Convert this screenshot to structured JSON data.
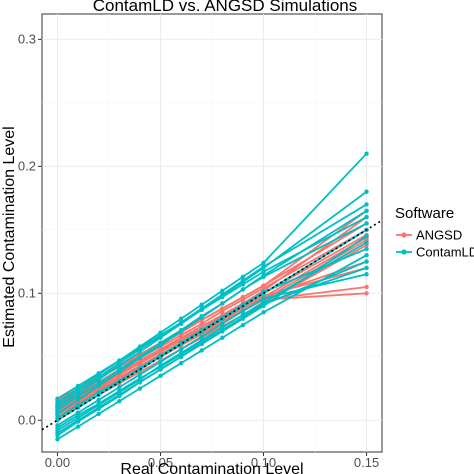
{
  "chart_data": {
    "type": "line",
    "title": "ContamLD vs. ANGSD Simulations",
    "xlabel": "Real Contamination Level",
    "ylabel": "Estimated Contamination Level",
    "x": [
      0.0,
      0.01,
      0.02,
      0.03,
      0.04,
      0.05,
      0.06,
      0.07,
      0.08,
      0.09,
      0.1,
      0.15
    ],
    "xticks": [
      0.0,
      0.05,
      0.1,
      0.15
    ],
    "xtick_labels": [
      "0.00",
      "0.05",
      "0.10",
      "0.15"
    ],
    "yticks": [
      0.0,
      0.1,
      0.2,
      0.3
    ],
    "ytick_labels": [
      "0.0",
      "0.1",
      "0.2",
      "0.3"
    ],
    "xlim": [
      -0.0075,
      0.1575
    ],
    "ylim": [
      -0.025,
      0.32
    ],
    "reference_line": {
      "slope": 1,
      "intercept": 0,
      "style": "dotted",
      "color": "#000000"
    },
    "grid": true,
    "legend": {
      "title": "Software",
      "position": "right",
      "entries": [
        {
          "name": "ANGSD",
          "color": "#F8766D"
        },
        {
          "name": "ContamLD",
          "color": "#00BFC4"
        }
      ]
    },
    "series": [
      {
        "name": "ANGSD",
        "color": "#F8766D",
        "lines": [
          [
            0.004,
            0.013,
            0.022,
            0.031,
            0.04,
            0.05,
            0.059,
            0.068,
            0.077,
            0.086,
            0.095,
            0.142
          ],
          [
            0.008,
            0.017,
            0.026,
            0.036,
            0.045,
            0.054,
            0.063,
            0.072,
            0.082,
            0.091,
            0.1,
            0.146
          ],
          [
            0.012,
            0.021,
            0.03,
            0.04,
            0.049,
            0.058,
            0.067,
            0.076,
            0.086,
            0.095,
            0.104,
            0.15
          ],
          [
            0.006,
            0.015,
            0.024,
            0.033,
            0.042,
            0.052,
            0.061,
            0.07,
            0.079,
            0.088,
            0.097,
            0.144
          ],
          [
            0.01,
            0.019,
            0.028,
            0.037,
            0.047,
            0.056,
            0.065,
            0.074,
            0.083,
            0.092,
            0.102,
            0.16
          ],
          [
            0.014,
            0.023,
            0.033,
            0.042,
            0.051,
            0.06,
            0.069,
            0.079,
            0.088,
            0.097,
            0.106,
            0.165
          ],
          [
            0.002,
            0.011,
            0.02,
            0.029,
            0.038,
            0.047,
            0.056,
            0.065,
            0.074,
            0.083,
            0.092,
            0.138
          ],
          [
            0.016,
            0.025,
            0.034,
            0.043,
            0.052,
            0.061,
            0.07,
            0.079,
            0.088,
            0.097,
            0.106,
            0.155
          ],
          [
            0.009,
            0.018,
            0.027,
            0.036,
            0.045,
            0.054,
            0.063,
            0.072,
            0.08,
            0.089,
            0.097,
            0.125
          ],
          [
            0.011,
            0.02,
            0.029,
            0.038,
            0.046,
            0.055,
            0.064,
            0.072,
            0.081,
            0.089,
            0.098,
            0.12
          ],
          [
            0.005,
            0.014,
            0.023,
            0.032,
            0.041,
            0.05,
            0.059,
            0.068,
            0.077,
            0.086,
            0.095,
            0.105
          ],
          [
            0.007,
            0.016,
            0.025,
            0.034,
            0.043,
            0.052,
            0.06,
            0.069,
            0.078,
            0.086,
            0.095,
            0.1
          ]
        ]
      },
      {
        "name": "ContamLD",
        "color": "#00BFC4",
        "lines": [
          [
            0.0,
            0.01,
            0.02,
            0.03,
            0.04,
            0.05,
            0.06,
            0.07,
            0.08,
            0.09,
            0.1,
            0.15
          ],
          [
            -0.008,
            0.002,
            0.012,
            0.022,
            0.032,
            0.043,
            0.053,
            0.063,
            0.073,
            0.083,
            0.093,
            0.14
          ],
          [
            0.01,
            0.021,
            0.032,
            0.043,
            0.054,
            0.065,
            0.076,
            0.087,
            0.098,
            0.109,
            0.12,
            0.18
          ],
          [
            0.014,
            0.025,
            0.036,
            0.047,
            0.058,
            0.069,
            0.08,
            0.091,
            0.102,
            0.113,
            0.124,
            0.21
          ],
          [
            -0.015,
            -0.005,
            0.005,
            0.015,
            0.025,
            0.035,
            0.045,
            0.055,
            0.065,
            0.075,
            0.085,
            0.13
          ],
          [
            -0.012,
            -0.001,
            0.009,
            0.019,
            0.03,
            0.04,
            0.05,
            0.061,
            0.071,
            0.081,
            0.092,
            0.12
          ],
          [
            0.005,
            0.016,
            0.027,
            0.038,
            0.049,
            0.059,
            0.07,
            0.081,
            0.092,
            0.103,
            0.114,
            0.165
          ],
          [
            0.017,
            0.027,
            0.037,
            0.047,
            0.057,
            0.067,
            0.077,
            0.087,
            0.097,
            0.107,
            0.117,
            0.16
          ],
          [
            -0.004,
            0.006,
            0.016,
            0.026,
            0.036,
            0.046,
            0.056,
            0.066,
            0.076,
            0.086,
            0.096,
            0.115
          ],
          [
            -0.01,
            0.0,
            0.01,
            0.02,
            0.03,
            0.04,
            0.05,
            0.06,
            0.07,
            0.08,
            0.09,
            0.145
          ],
          [
            0.002,
            0.012,
            0.022,
            0.031,
            0.041,
            0.051,
            0.061,
            0.071,
            0.081,
            0.091,
            0.101,
            0.135
          ],
          [
            0.008,
            0.019,
            0.029,
            0.04,
            0.05,
            0.061,
            0.071,
            0.082,
            0.092,
            0.103,
            0.113,
            0.155
          ],
          [
            -0.006,
            0.004,
            0.013,
            0.023,
            0.033,
            0.042,
            0.052,
            0.062,
            0.071,
            0.081,
            0.091,
            0.125
          ],
          [
            0.012,
            0.023,
            0.034,
            0.045,
            0.056,
            0.066,
            0.077,
            0.088,
            0.099,
            0.11,
            0.121,
            0.17
          ]
        ]
      }
    ]
  }
}
